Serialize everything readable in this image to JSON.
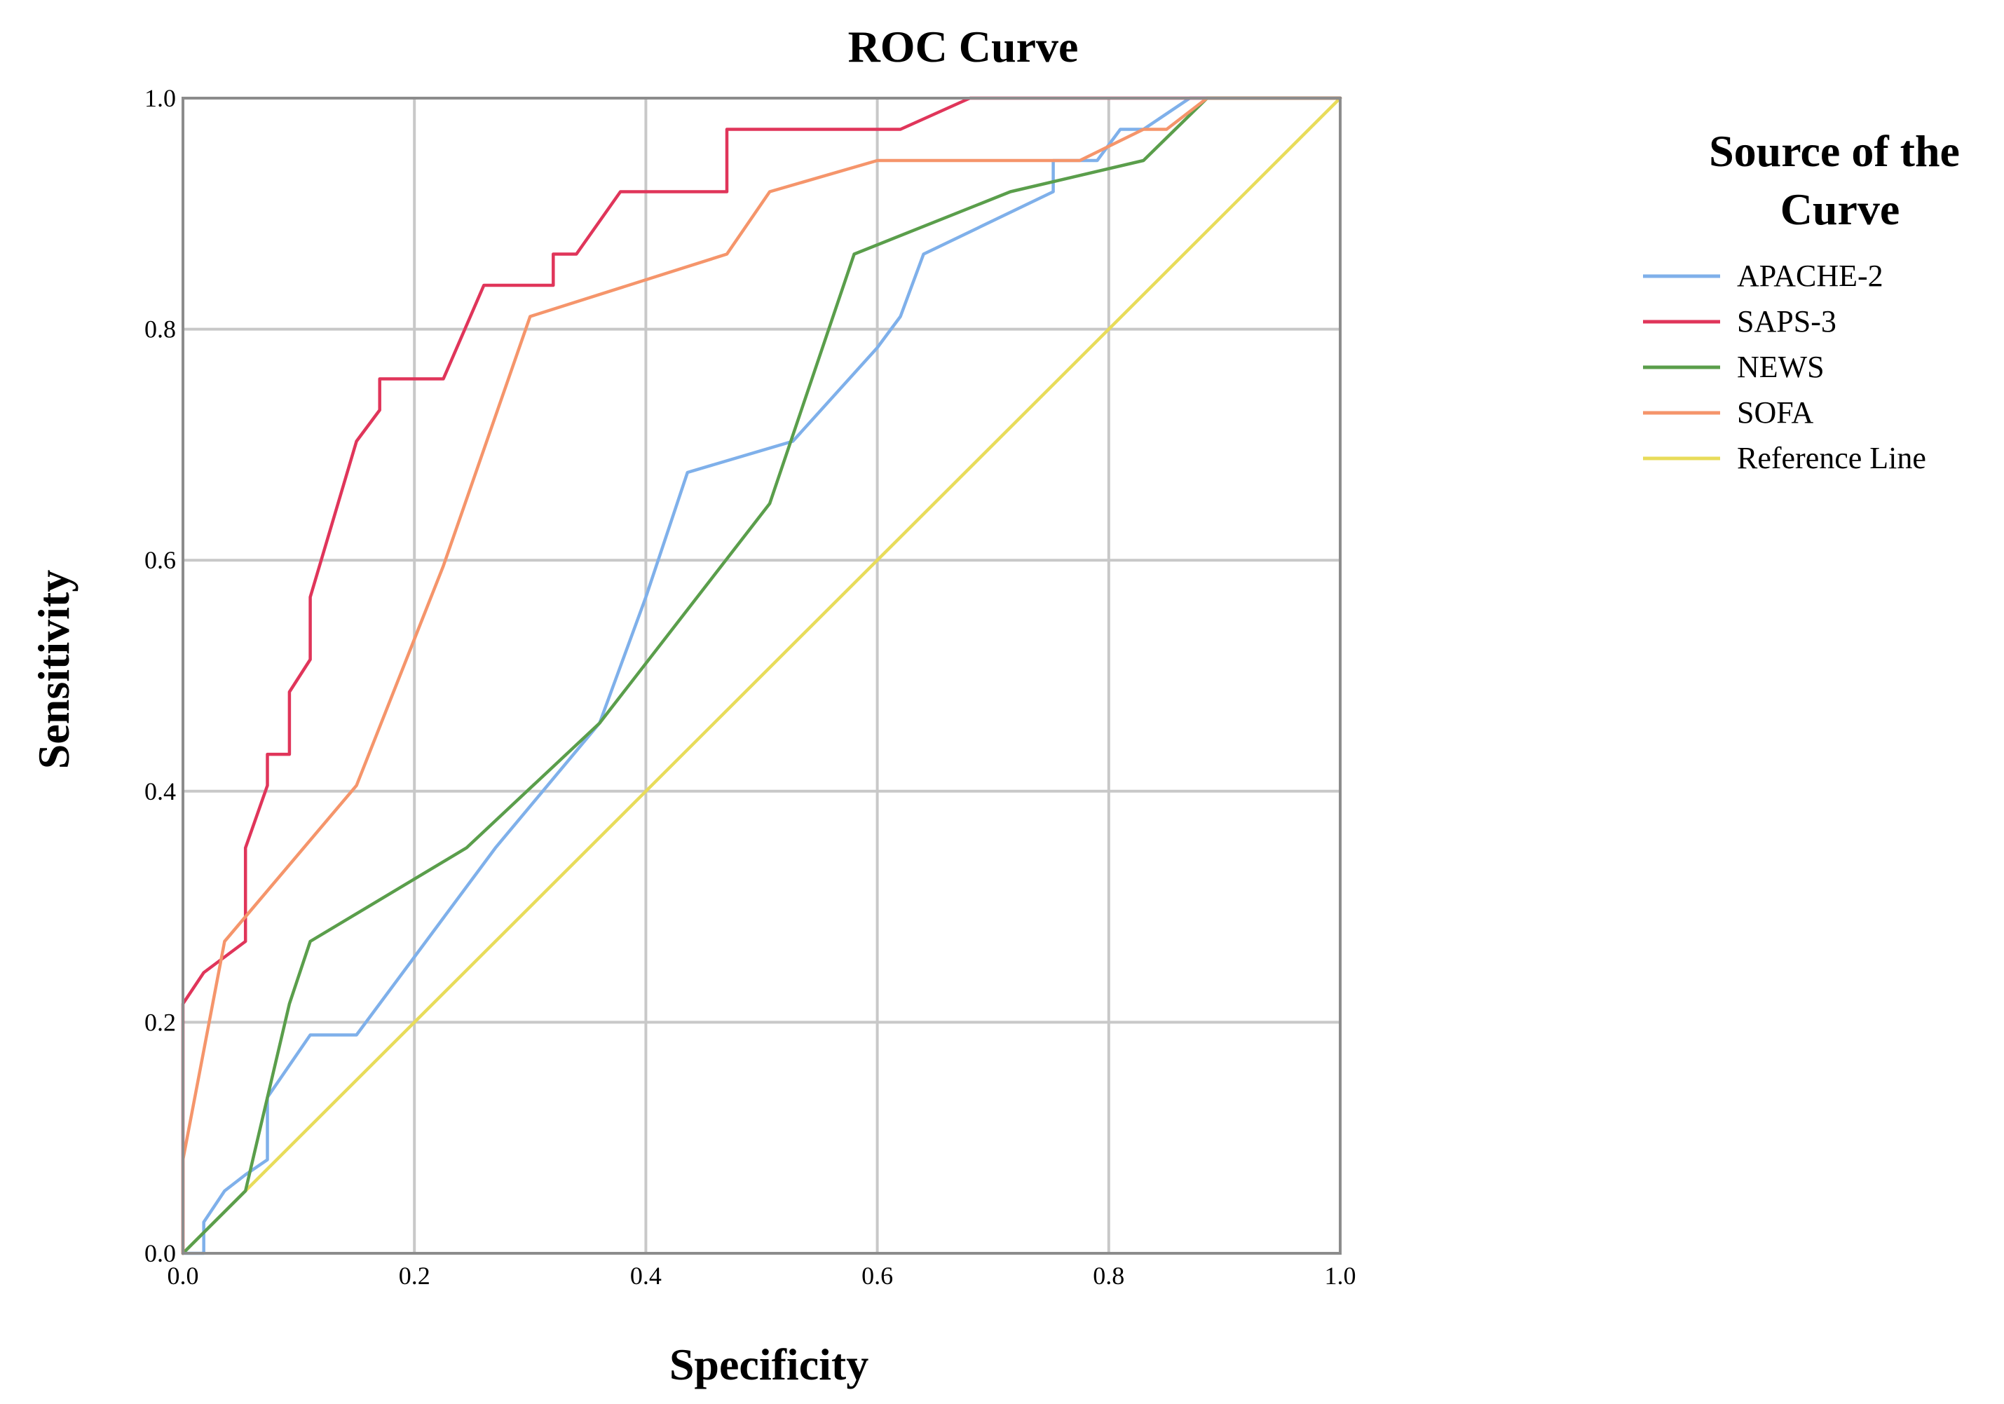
{
  "chart_data": {
    "type": "line",
    "title": "ROC Curve",
    "xlabel": "Specificity",
    "ylabel": "Sensitivity",
    "xlim": [
      0.0,
      1.0
    ],
    "ylim": [
      0.0,
      1.0
    ],
    "x_ticks": [
      "0.0",
      "0.2",
      "0.4",
      "0.6",
      "0.8",
      "1.0"
    ],
    "y_ticks": [
      "0.0",
      "0.2",
      "0.4",
      "0.6",
      "0.8",
      "1.0"
    ],
    "grid": true,
    "legend": {
      "title": "Source of the Curve",
      "title_lines": [
        "Source of the",
        "Curve"
      ],
      "position": "right"
    },
    "series": [
      {
        "name": "APACHE-2",
        "color": "#7fb0ea",
        "points": [
          [
            0.0,
            0.0
          ],
          [
            0.018,
            0.0
          ],
          [
            0.018,
            0.027
          ],
          [
            0.036,
            0.054
          ],
          [
            0.054,
            0.068
          ],
          [
            0.073,
            0.081
          ],
          [
            0.073,
            0.135
          ],
          [
            0.11,
            0.189
          ],
          [
            0.15,
            0.189
          ],
          [
            0.27,
            0.351
          ],
          [
            0.36,
            0.459
          ],
          [
            0.4,
            0.568
          ],
          [
            0.436,
            0.676
          ],
          [
            0.527,
            0.703
          ],
          [
            0.6,
            0.784
          ],
          [
            0.62,
            0.811
          ],
          [
            0.64,
            0.865
          ],
          [
            0.752,
            0.919
          ],
          [
            0.752,
            0.946
          ],
          [
            0.79,
            0.946
          ],
          [
            0.81,
            0.973
          ],
          [
            0.83,
            0.973
          ],
          [
            0.87,
            1.0
          ],
          [
            1.0,
            1.0
          ]
        ]
      },
      {
        "name": "SAPS-3",
        "color": "#e0355a",
        "points": [
          [
            0.0,
            0.0
          ],
          [
            0.0,
            0.216
          ],
          [
            0.018,
            0.243
          ],
          [
            0.054,
            0.27
          ],
          [
            0.054,
            0.351
          ],
          [
            0.073,
            0.405
          ],
          [
            0.073,
            0.432
          ],
          [
            0.092,
            0.432
          ],
          [
            0.092,
            0.486
          ],
          [
            0.11,
            0.514
          ],
          [
            0.11,
            0.568
          ],
          [
            0.15,
            0.703
          ],
          [
            0.17,
            0.73
          ],
          [
            0.17,
            0.757
          ],
          [
            0.225,
            0.757
          ],
          [
            0.26,
            0.838
          ],
          [
            0.32,
            0.838
          ],
          [
            0.32,
            0.865
          ],
          [
            0.34,
            0.865
          ],
          [
            0.378,
            0.919
          ],
          [
            0.47,
            0.919
          ],
          [
            0.47,
            0.973
          ],
          [
            0.62,
            0.973
          ],
          [
            0.68,
            1.0
          ],
          [
            1.0,
            1.0
          ]
        ]
      },
      {
        "name": "NEWS",
        "color": "#5a9e4b",
        "points": [
          [
            0.0,
            0.0
          ],
          [
            0.054,
            0.054
          ],
          [
            0.092,
            0.216
          ],
          [
            0.11,
            0.27
          ],
          [
            0.245,
            0.351
          ],
          [
            0.36,
            0.459
          ],
          [
            0.507,
            0.649
          ],
          [
            0.58,
            0.865
          ],
          [
            0.715,
            0.919
          ],
          [
            0.83,
            0.946
          ],
          [
            0.885,
            1.0
          ],
          [
            1.0,
            1.0
          ]
        ]
      },
      {
        "name": "SOFA",
        "color": "#f5956b",
        "points": [
          [
            0.0,
            0.0
          ],
          [
            0.0,
            0.081
          ],
          [
            0.036,
            0.27
          ],
          [
            0.15,
            0.405
          ],
          [
            0.225,
            0.595
          ],
          [
            0.3,
            0.811
          ],
          [
            0.47,
            0.865
          ],
          [
            0.507,
            0.919
          ],
          [
            0.6,
            0.946
          ],
          [
            0.775,
            0.946
          ],
          [
            0.83,
            0.973
          ],
          [
            0.85,
            0.973
          ],
          [
            0.885,
            1.0
          ],
          [
            1.0,
            1.0
          ]
        ]
      },
      {
        "name": "Reference Line",
        "color": "#e8dc5a",
        "points": [
          [
            0.0,
            0.0
          ],
          [
            1.0,
            1.0
          ]
        ]
      }
    ]
  }
}
